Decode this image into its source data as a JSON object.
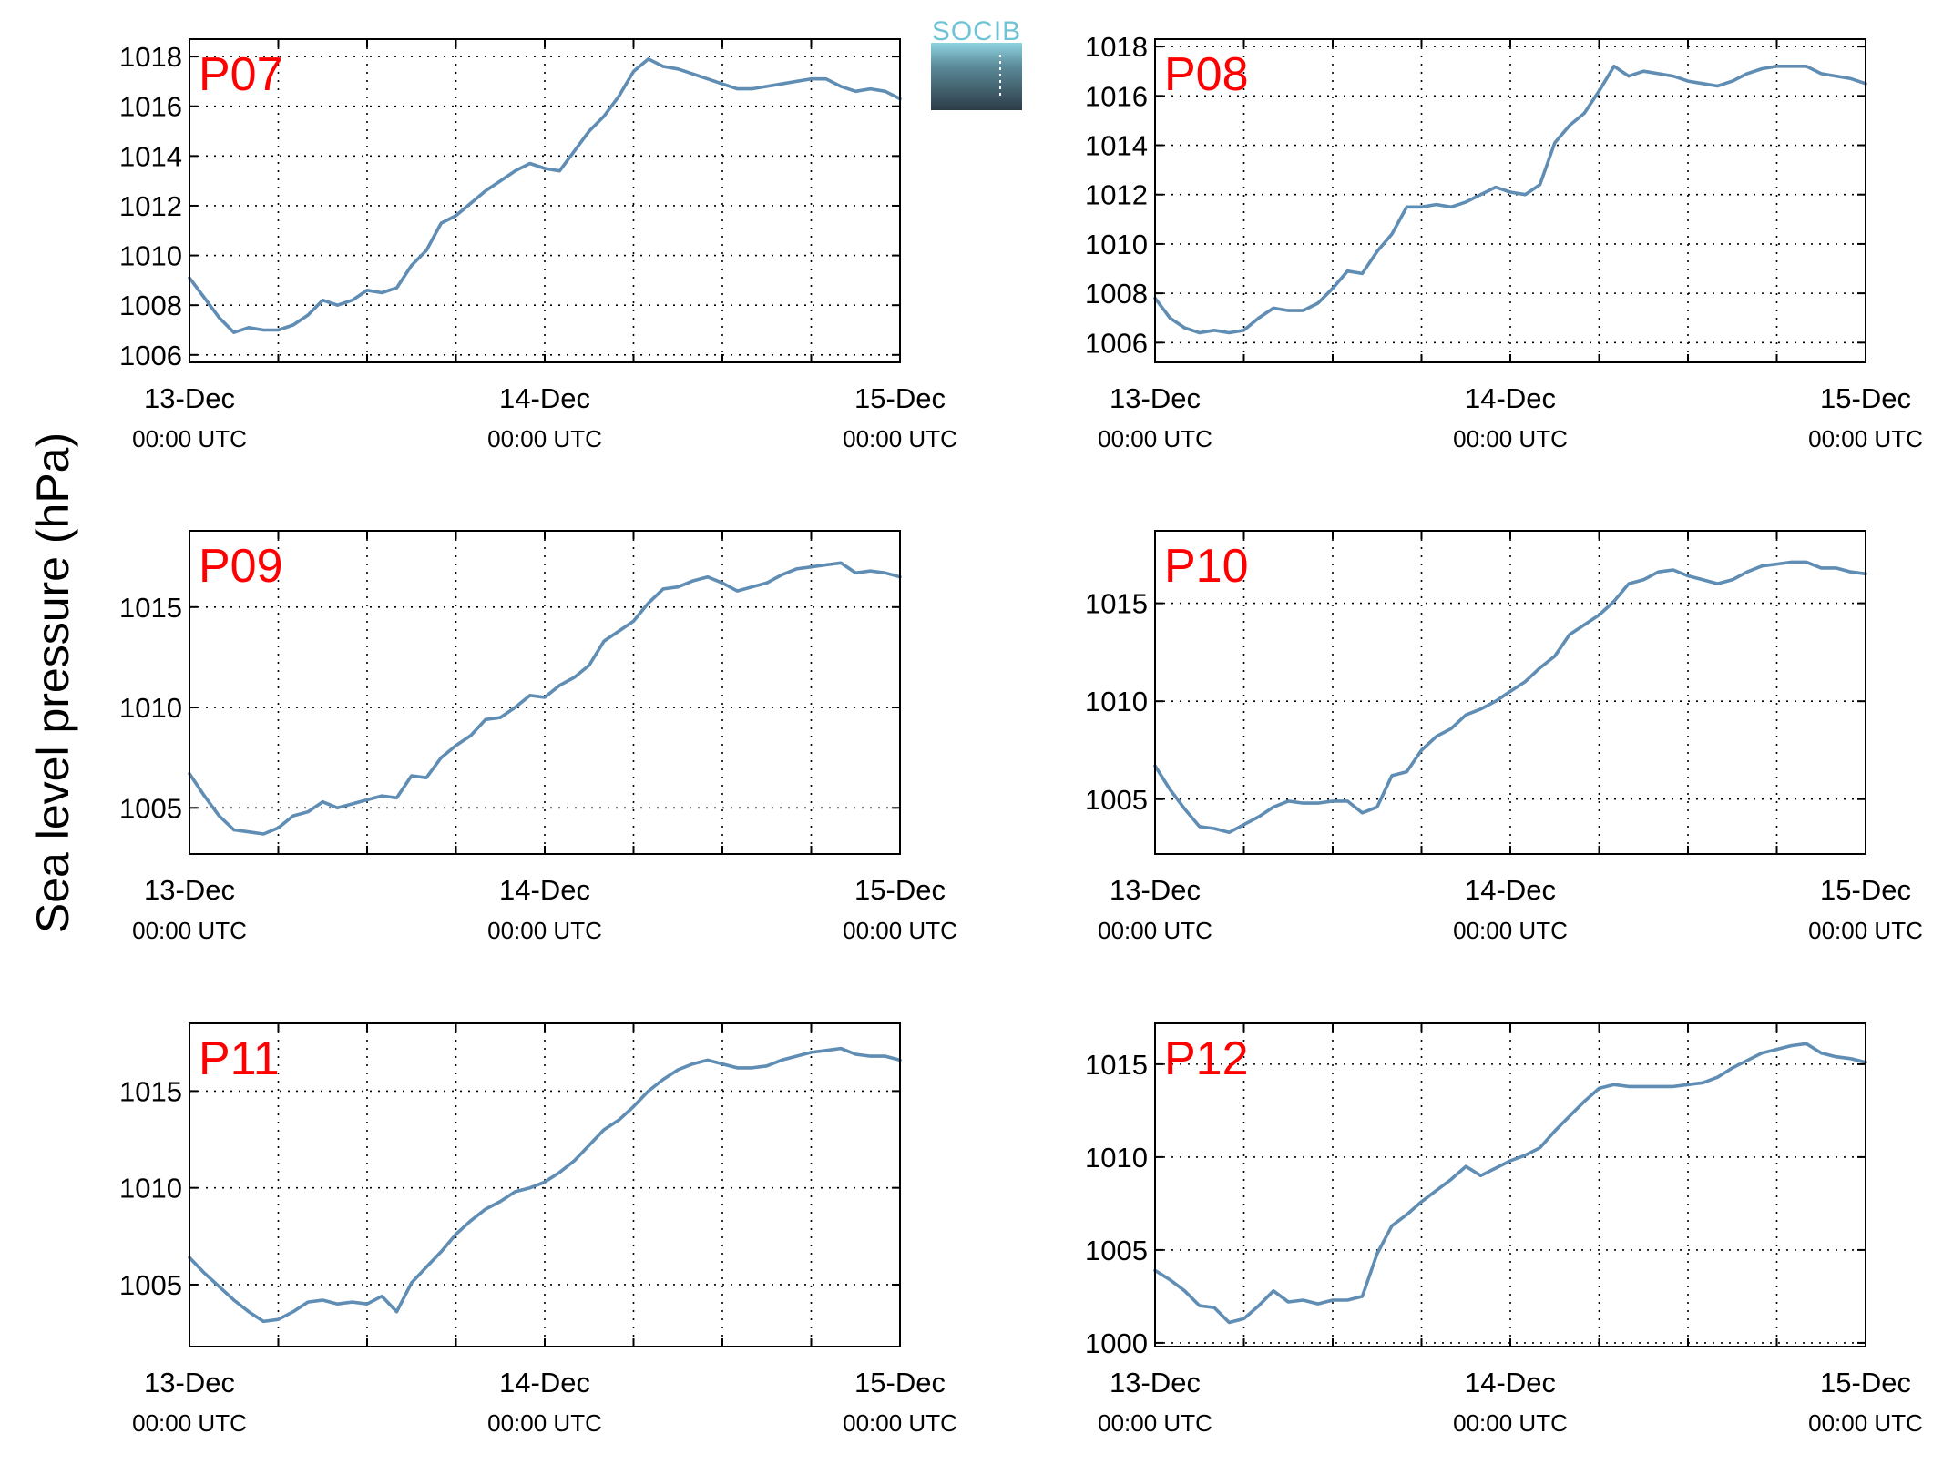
{
  "figure": {
    "ylabel": "Sea level pressure (hPa)",
    "logo_text": "SOCIB",
    "series_color": "#5f8db4",
    "title_color": "#ff0000"
  },
  "chart_data": [
    {
      "type": "line",
      "title": "P07",
      "xlim": [
        0,
        48
      ],
      "ylim": [
        1005.7,
        1018.7
      ],
      "yticks": [
        1006,
        1008,
        1010,
        1012,
        1014,
        1016,
        1018
      ],
      "xticks": [
        {
          "x": 0,
          "main": "13-Dec",
          "sub": "00:00 UTC"
        },
        {
          "x": 24,
          "main": "14-Dec",
          "sub": "00:00 UTC"
        },
        {
          "x": 48,
          "main": "15-Dec",
          "sub": "00:00 UTC"
        }
      ],
      "grid_x": [
        6,
        12,
        18,
        24,
        30,
        36,
        42
      ],
      "x": [
        0,
        1,
        2,
        3,
        4,
        5,
        6,
        7,
        8,
        9,
        10,
        11,
        12,
        13,
        14,
        15,
        16,
        17,
        18,
        19,
        20,
        21,
        22,
        23,
        24,
        25,
        26,
        27,
        28,
        29,
        30,
        31,
        32,
        33,
        34,
        35,
        36,
        37,
        38,
        39,
        40,
        41,
        42,
        43,
        44,
        45,
        46,
        47,
        48
      ],
      "values": [
        1009.1,
        1008.3,
        1007.5,
        1006.9,
        1007.1,
        1007.0,
        1007.0,
        1007.2,
        1007.6,
        1008.2,
        1008.0,
        1008.2,
        1008.6,
        1008.5,
        1008.7,
        1009.6,
        1010.2,
        1011.3,
        1011.6,
        1012.1,
        1012.6,
        1013.0,
        1013.4,
        1013.7,
        1013.5,
        1013.4,
        1014.2,
        1015.0,
        1015.6,
        1016.4,
        1017.4,
        1017.9,
        1017.6,
        1017.5,
        1017.3,
        1017.1,
        1016.9,
        1016.7,
        1016.7,
        1016.8,
        1016.9,
        1017.0,
        1017.1,
        1017.1,
        1016.8,
        1016.6,
        1016.7,
        1016.6,
        1016.3
      ]
    },
    {
      "type": "line",
      "title": "P08",
      "xlim": [
        0,
        48
      ],
      "ylim": [
        1005.2,
        1018.3
      ],
      "yticks": [
        1006,
        1008,
        1010,
        1012,
        1014,
        1016,
        1018
      ],
      "xticks": [
        {
          "x": 0,
          "main": "13-Dec",
          "sub": "00:00 UTC"
        },
        {
          "x": 24,
          "main": "14-Dec",
          "sub": "00:00 UTC"
        },
        {
          "x": 48,
          "main": "15-Dec",
          "sub": "00:00 UTC"
        }
      ],
      "grid_x": [
        6,
        12,
        18,
        24,
        30,
        36,
        42
      ],
      "x": [
        0,
        1,
        2,
        3,
        4,
        5,
        6,
        7,
        8,
        9,
        10,
        11,
        12,
        13,
        14,
        15,
        16,
        17,
        18,
        19,
        20,
        21,
        22,
        23,
        24,
        25,
        26,
        27,
        28,
        29,
        30,
        31,
        32,
        33,
        34,
        35,
        36,
        37,
        38,
        39,
        40,
        41,
        42,
        43,
        44,
        45,
        46,
        47,
        48
      ],
      "values": [
        1007.8,
        1007.0,
        1006.6,
        1006.4,
        1006.5,
        1006.4,
        1006.5,
        1007.0,
        1007.4,
        1007.3,
        1007.3,
        1007.6,
        1008.2,
        1008.9,
        1008.8,
        1009.7,
        1010.4,
        1011.5,
        1011.5,
        1011.6,
        1011.5,
        1011.7,
        1012.0,
        1012.3,
        1012.1,
        1012.0,
        1012.4,
        1014.1,
        1014.8,
        1015.3,
        1016.2,
        1017.2,
        1016.8,
        1017.0,
        1016.9,
        1016.8,
        1016.6,
        1016.5,
        1016.4,
        1016.6,
        1016.9,
        1017.1,
        1017.2,
        1017.2,
        1017.2,
        1016.9,
        1016.8,
        1016.7,
        1016.5
      ]
    },
    {
      "type": "line",
      "title": "P09",
      "xlim": [
        0,
        48
      ],
      "ylim": [
        1002.7,
        1018.8
      ],
      "yticks": [
        1005,
        1010,
        1015
      ],
      "xticks": [
        {
          "x": 0,
          "main": "13-Dec",
          "sub": "00:00 UTC"
        },
        {
          "x": 24,
          "main": "14-Dec",
          "sub": "00:00 UTC"
        },
        {
          "x": 48,
          "main": "15-Dec",
          "sub": "00:00 UTC"
        }
      ],
      "grid_x": [
        6,
        12,
        18,
        24,
        30,
        36,
        42
      ],
      "x": [
        0,
        1,
        2,
        3,
        4,
        5,
        6,
        7,
        8,
        9,
        10,
        11,
        12,
        13,
        14,
        15,
        16,
        17,
        18,
        19,
        20,
        21,
        22,
        23,
        24,
        25,
        26,
        27,
        28,
        29,
        30,
        31,
        32,
        33,
        34,
        35,
        36,
        37,
        38,
        39,
        40,
        41,
        42,
        43,
        44,
        45,
        46,
        47,
        48
      ],
      "values": [
        1006.7,
        1005.6,
        1004.6,
        1003.9,
        1003.8,
        1003.7,
        1004.0,
        1004.6,
        1004.8,
        1005.3,
        1005.0,
        1005.2,
        1005.4,
        1005.6,
        1005.5,
        1006.6,
        1006.5,
        1007.5,
        1008.1,
        1008.6,
        1009.4,
        1009.5,
        1010.0,
        1010.6,
        1010.5,
        1011.1,
        1011.5,
        1012.1,
        1013.3,
        1013.8,
        1014.3,
        1015.2,
        1015.9,
        1016.0,
        1016.3,
        1016.5,
        1016.2,
        1015.8,
        1016.0,
        1016.2,
        1016.6,
        1016.9,
        1017.0,
        1017.1,
        1017.2,
        1016.7,
        1016.8,
        1016.7,
        1016.5
      ]
    },
    {
      "type": "line",
      "title": "P10",
      "xlim": [
        0,
        48
      ],
      "ylim": [
        1002.2,
        1018.7
      ],
      "yticks": [
        1005,
        1010,
        1015
      ],
      "xticks": [
        {
          "x": 0,
          "main": "13-Dec",
          "sub": "00:00 UTC"
        },
        {
          "x": 24,
          "main": "14-Dec",
          "sub": "00:00 UTC"
        },
        {
          "x": 48,
          "main": "15-Dec",
          "sub": "00:00 UTC"
        }
      ],
      "grid_x": [
        6,
        12,
        18,
        24,
        30,
        36,
        42
      ],
      "x": [
        0,
        1,
        2,
        3,
        4,
        5,
        6,
        7,
        8,
        9,
        10,
        11,
        12,
        13,
        14,
        15,
        16,
        17,
        18,
        19,
        20,
        21,
        22,
        23,
        24,
        25,
        26,
        27,
        28,
        29,
        30,
        31,
        32,
        33,
        34,
        35,
        36,
        37,
        38,
        39,
        40,
        41,
        42,
        43,
        44,
        45,
        46,
        47,
        48
      ],
      "values": [
        1006.7,
        1005.5,
        1004.5,
        1003.6,
        1003.5,
        1003.3,
        1003.7,
        1004.1,
        1004.6,
        1004.9,
        1004.8,
        1004.8,
        1004.9,
        1004.9,
        1004.3,
        1004.6,
        1006.2,
        1006.4,
        1007.5,
        1008.2,
        1008.6,
        1009.3,
        1009.6,
        1010.0,
        1010.5,
        1011.0,
        1011.7,
        1012.3,
        1013.4,
        1013.9,
        1014.4,
        1015.1,
        1016.0,
        1016.2,
        1016.6,
        1016.7,
        1016.4,
        1016.2,
        1016.0,
        1016.2,
        1016.6,
        1016.9,
        1017.0,
        1017.1,
        1017.1,
        1016.8,
        1016.8,
        1016.6,
        1016.5
      ]
    },
    {
      "type": "line",
      "title": "P11",
      "xlim": [
        0,
        48
      ],
      "ylim": [
        1001.8,
        1018.5
      ],
      "yticks": [
        1005,
        1010,
        1015
      ],
      "xticks": [
        {
          "x": 0,
          "main": "13-Dec",
          "sub": "00:00 UTC"
        },
        {
          "x": 24,
          "main": "14-Dec",
          "sub": "00:00 UTC"
        },
        {
          "x": 48,
          "main": "15-Dec",
          "sub": "00:00 UTC"
        }
      ],
      "grid_x": [
        6,
        12,
        18,
        24,
        30,
        36,
        42
      ],
      "x": [
        0,
        1,
        2,
        3,
        4,
        5,
        6,
        7,
        8,
        9,
        10,
        11,
        12,
        13,
        14,
        15,
        16,
        17,
        18,
        19,
        20,
        21,
        22,
        23,
        24,
        25,
        26,
        27,
        28,
        29,
        30,
        31,
        32,
        33,
        34,
        35,
        36,
        37,
        38,
        39,
        40,
        41,
        42,
        43,
        44,
        45,
        46,
        47,
        48
      ],
      "values": [
        1006.4,
        1005.6,
        1004.9,
        1004.2,
        1003.6,
        1003.1,
        1003.2,
        1003.6,
        1004.1,
        1004.2,
        1004.0,
        1004.1,
        1004.0,
        1004.4,
        1003.6,
        1005.1,
        1005.9,
        1006.7,
        1007.6,
        1008.3,
        1008.9,
        1009.3,
        1009.8,
        1010.0,
        1010.3,
        1010.8,
        1011.4,
        1012.2,
        1013.0,
        1013.5,
        1014.2,
        1015.0,
        1015.6,
        1016.1,
        1016.4,
        1016.6,
        1016.4,
        1016.2,
        1016.2,
        1016.3,
        1016.6,
        1016.8,
        1017.0,
        1017.1,
        1017.2,
        1016.9,
        1016.8,
        1016.8,
        1016.6
      ]
    },
    {
      "type": "line",
      "title": "P12",
      "xlim": [
        0,
        48
      ],
      "ylim": [
        999.8,
        1017.2
      ],
      "yticks": [
        1000,
        1005,
        1010,
        1015
      ],
      "xticks": [
        {
          "x": 0,
          "main": "13-Dec",
          "sub": "00:00 UTC"
        },
        {
          "x": 24,
          "main": "14-Dec",
          "sub": "00:00 UTC"
        },
        {
          "x": 48,
          "main": "15-Dec",
          "sub": "00:00 UTC"
        }
      ],
      "grid_x": [
        6,
        12,
        18,
        24,
        30,
        36,
        42
      ],
      "x": [
        0,
        1,
        2,
        3,
        4,
        5,
        6,
        7,
        8,
        9,
        10,
        11,
        12,
        13,
        14,
        15,
        16,
        17,
        18,
        19,
        20,
        21,
        22,
        23,
        24,
        25,
        26,
        27,
        28,
        29,
        30,
        31,
        32,
        33,
        34,
        35,
        36,
        37,
        38,
        39,
        40,
        41,
        42,
        43,
        44,
        45,
        46,
        47,
        48
      ],
      "values": [
        1003.9,
        1003.4,
        1002.8,
        1002.0,
        1001.9,
        1001.1,
        1001.3,
        1002.0,
        1002.8,
        1002.2,
        1002.3,
        1002.1,
        1002.3,
        1002.3,
        1002.5,
        1004.8,
        1006.3,
        1006.9,
        1007.6,
        1008.2,
        1008.8,
        1009.5,
        1009.0,
        1009.4,
        1009.8,
        1010.1,
        1010.5,
        1011.4,
        1012.2,
        1013.0,
        1013.7,
        1013.9,
        1013.8,
        1013.8,
        1013.8,
        1013.8,
        1013.9,
        1014.0,
        1014.3,
        1014.8,
        1015.2,
        1015.6,
        1015.8,
        1016.0,
        1016.1,
        1015.6,
        1015.4,
        1015.3,
        1015.1
      ]
    }
  ]
}
